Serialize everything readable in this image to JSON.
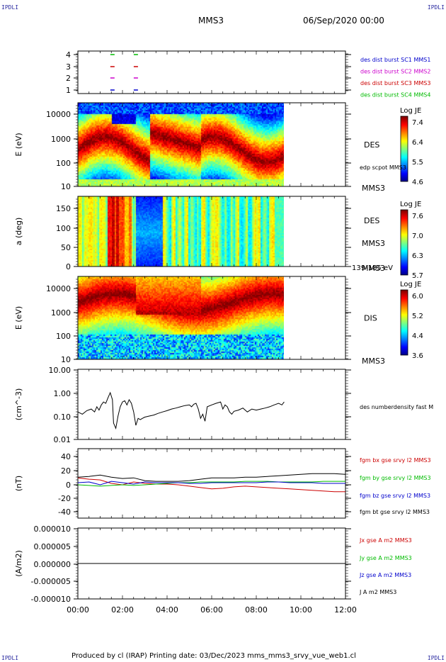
{
  "corner_mark": "IPDLI",
  "header": {
    "spacecraft": "MMS3",
    "date": "06/Sep/2020 00:00"
  },
  "footer": {
    "text": "Produced by cl (IRAP)   Printing date: 03/Dec/2023   mms_mms3_srvy_vue_web1.cl"
  },
  "time_axis": {
    "ticks": [
      "00:00",
      "02:00",
      "04:00",
      "06:00",
      "08:00",
      "10:00",
      "12:00"
    ],
    "range_hours": [
      0,
      12
    ]
  },
  "chart_data": [
    {
      "type": "scatter",
      "id": "burst",
      "ytick_labels": [
        "4",
        "3",
        "2",
        "1"
      ],
      "ylim": [
        0.5,
        4.5
      ],
      "series": [
        {
          "name": "des dist burst SC1 MMS1",
          "color": "#0000cc",
          "y": 1,
          "times": [
            1.55,
            2.6
          ]
        },
        {
          "name": "des dist burst SC2 MMS2",
          "color": "#cc00cc",
          "y": 2,
          "times": [
            1.55,
            2.6
          ]
        },
        {
          "name": "des dist burst SC3 MMS3",
          "color": "#cc0000",
          "y": 3,
          "times": [
            1.55,
            2.6
          ]
        },
        {
          "name": "des dist burst SC4 MMS4",
          "color": "#00bb00",
          "y": 4,
          "times": [
            1.55,
            2.6
          ]
        }
      ]
    },
    {
      "type": "heatmap",
      "id": "des_energy",
      "ylabel": "E (eV)",
      "yscale": "log",
      "ylim": [
        10,
        30000
      ],
      "ytick_labels": [
        "10000",
        "1000",
        "100",
        "10"
      ],
      "data_end_hours": 9.25,
      "right_label": "DES",
      "extra_label": "edp scpot MMS3",
      "mms_label": "MMS3",
      "colorbar": {
        "title": "Log JE",
        "ticks": [
          "7.4",
          "6.4",
          "5.5",
          "4.6"
        ],
        "range": [
          4.6,
          7.4
        ]
      }
    },
    {
      "type": "heatmap",
      "id": "des_pitch",
      "ylabel": "a (deg)",
      "ylim": [
        0,
        180
      ],
      "ytick_labels": [
        "150",
        "100",
        "50",
        "0"
      ],
      "data_end_hours": 9.25,
      "right_label": "DES",
      "mms_label": "MMS3",
      "energy_label": "139-185 eV",
      "colorbar": {
        "title": "Log JE",
        "ticks": [
          "7.6",
          "7.0",
          "6.3",
          "5.7"
        ],
        "range": [
          5.7,
          7.6
        ]
      }
    },
    {
      "type": "heatmap",
      "id": "dis_energy",
      "ylabel": "E (eV)",
      "yscale": "log",
      "ylim": [
        10,
        30000
      ],
      "ytick_labels": [
        "10000",
        "1000",
        "100",
        "10"
      ],
      "data_end_hours": 9.25,
      "right_label": "DIS",
      "mms_label": "MMS3",
      "colorbar": {
        "title": "Log JE",
        "ticks": [
          "6.0",
          "5.2",
          "4.4",
          "3.6"
        ],
        "range": [
          3.6,
          6.0
        ]
      }
    },
    {
      "type": "line",
      "id": "density",
      "ylabel": "(cm^-3)",
      "yscale": "log",
      "ylim": [
        0.01,
        10
      ],
      "ytick_labels": [
        "10.00",
        "1.00",
        "0.10",
        "0.01"
      ],
      "series": [
        {
          "name": "des numberdensity fast M",
          "color": "#000000",
          "x": [
            0.0,
            0.2,
            0.4,
            0.6,
            0.75,
            0.85,
            0.95,
            1.05,
            1.15,
            1.25,
            1.35,
            1.45,
            1.55,
            1.6,
            1.7,
            1.8,
            1.9,
            2.0,
            2.1,
            2.2,
            2.3,
            2.4,
            2.5,
            2.6,
            2.7,
            2.8,
            2.9,
            3.0,
            3.2,
            3.4,
            3.6,
            3.8,
            4.0,
            4.2,
            4.4,
            4.6,
            4.8,
            5.0,
            5.1,
            5.2,
            5.3,
            5.4,
            5.5,
            5.6,
            5.7,
            5.8,
            6.0,
            6.2,
            6.4,
            6.5,
            6.6,
            6.7,
            6.8,
            6.9,
            7.0,
            7.2,
            7.4,
            7.6,
            7.8,
            8.0,
            8.2,
            8.4,
            8.6,
            8.8,
            9.0,
            9.15,
            9.25
          ],
          "y": [
            0.15,
            0.12,
            0.17,
            0.2,
            0.15,
            0.25,
            0.18,
            0.3,
            0.4,
            0.35,
            0.6,
            1.0,
            0.5,
            0.05,
            0.03,
            0.1,
            0.25,
            0.4,
            0.45,
            0.3,
            0.5,
            0.35,
            0.15,
            0.04,
            0.08,
            0.07,
            0.08,
            0.09,
            0.1,
            0.11,
            0.13,
            0.15,
            0.17,
            0.2,
            0.22,
            0.25,
            0.28,
            0.3,
            0.25,
            0.32,
            0.35,
            0.2,
            0.08,
            0.12,
            0.06,
            0.25,
            0.3,
            0.35,
            0.4,
            0.2,
            0.3,
            0.25,
            0.15,
            0.12,
            0.16,
            0.18,
            0.22,
            0.15,
            0.2,
            0.18,
            0.2,
            0.22,
            0.25,
            0.3,
            0.35,
            0.3,
            0.4
          ]
        }
      ]
    },
    {
      "type": "line",
      "id": "magnetic",
      "ylabel": "(nT)",
      "ylim": [
        -50,
        50
      ],
      "ytick_labels": [
        "40",
        "20",
        "0",
        "-20",
        "-40"
      ],
      "series": [
        {
          "name": "fgm bx gse srvy l2 MMS3",
          "color": "#cc0000",
          "x": [
            0.0,
            0.5,
            1.0,
            1.5,
            2.0,
            2.5,
            3.0,
            3.5,
            4.0,
            4.5,
            5.0,
            5.5,
            6.0,
            6.5,
            7.0,
            7.5,
            8.0,
            8.5,
            9.0,
            9.5,
            10.0,
            10.5,
            11.0,
            11.5,
            12.0
          ],
          "y": [
            8,
            6,
            5,
            0,
            -2,
            2,
            0,
            -1,
            -1,
            -2,
            -4,
            -6,
            -8,
            -7,
            -5,
            -4,
            -5,
            -6,
            -7,
            -8,
            -9,
            -10,
            -11,
            -12,
            -12
          ]
        },
        {
          "name": "fgm by gse srvy l2 MMS3",
          "color": "#00bb00",
          "x": [
            0.0,
            0.5,
            1.0,
            1.5,
            2.0,
            2.5,
            3.0,
            3.5,
            4.0,
            4.5,
            5.0,
            5.5,
            6.0,
            6.5,
            7.0,
            7.5,
            8.0,
            8.5,
            9.0,
            9.5,
            10.0,
            10.5,
            11.0,
            11.5,
            12.0
          ],
          "y": [
            -2,
            -3,
            -4,
            -3,
            -2,
            -3,
            -2,
            -1,
            0,
            1,
            1,
            2,
            2,
            2,
            2,
            3,
            3,
            3,
            2,
            2,
            2,
            2,
            3,
            3,
            3
          ]
        },
        {
          "name": "fgm bz gse srvy l2 MMS3",
          "color": "#0000cc",
          "x": [
            0.0,
            0.5,
            1.0,
            1.5,
            2.0,
            2.5,
            3.0,
            3.5,
            4.0,
            4.5,
            5.0,
            5.5,
            6.0,
            6.5,
            7.0,
            7.5,
            8.0,
            8.5,
            9.0,
            9.5,
            10.0,
            10.5,
            11.0,
            11.5,
            12.0
          ],
          "y": [
            1,
            2,
            -2,
            3,
            1,
            -1,
            2,
            1,
            1,
            1,
            0,
            0,
            1,
            1,
            1,
            1,
            1,
            2,
            2,
            1,
            1,
            1,
            0,
            0,
            0
          ]
        },
        {
          "name": "fgm bt gse srvy l2 MMS3",
          "color": "#000000",
          "x": [
            0.0,
            0.5,
            1.0,
            1.5,
            2.0,
            2.5,
            3.0,
            3.5,
            4.0,
            4.5,
            5.0,
            5.5,
            6.0,
            6.5,
            7.0,
            7.5,
            8.0,
            8.5,
            9.0,
            9.5,
            10.0,
            10.5,
            11.0,
            11.5,
            12.0
          ],
          "y": [
            9,
            10,
            12,
            9,
            7,
            8,
            4,
            3,
            3,
            3,
            4,
            6,
            8,
            8,
            8,
            9,
            9,
            10,
            11,
            12,
            13,
            14,
            14,
            14,
            13
          ]
        }
      ]
    },
    {
      "type": "line",
      "id": "current",
      "ylabel": "(A/m2)",
      "ylim": [
        -1e-05,
        1e-05
      ],
      "ytick_labels": [
        "0.000010",
        "0.000005",
        "0.000000",
        "-0.000005",
        "-0.000010"
      ],
      "series": [
        {
          "name": "Jx gse A m2 MMS3",
          "color": "#cc0000",
          "x": [
            0,
            12
          ],
          "y": [
            0,
            0
          ]
        },
        {
          "name": "Jy gse A m2 MMS3",
          "color": "#00bb00",
          "x": [
            0,
            12
          ],
          "y": [
            0,
            0
          ]
        },
        {
          "name": "Jz gse A m2 MMS3",
          "color": "#0000cc",
          "x": [
            0,
            12
          ],
          "y": [
            0,
            0
          ]
        },
        {
          "name": "J A m2 MMS3",
          "color": "#000000",
          "x": [
            0,
            12
          ],
          "y": [
            0,
            0
          ]
        }
      ]
    }
  ]
}
